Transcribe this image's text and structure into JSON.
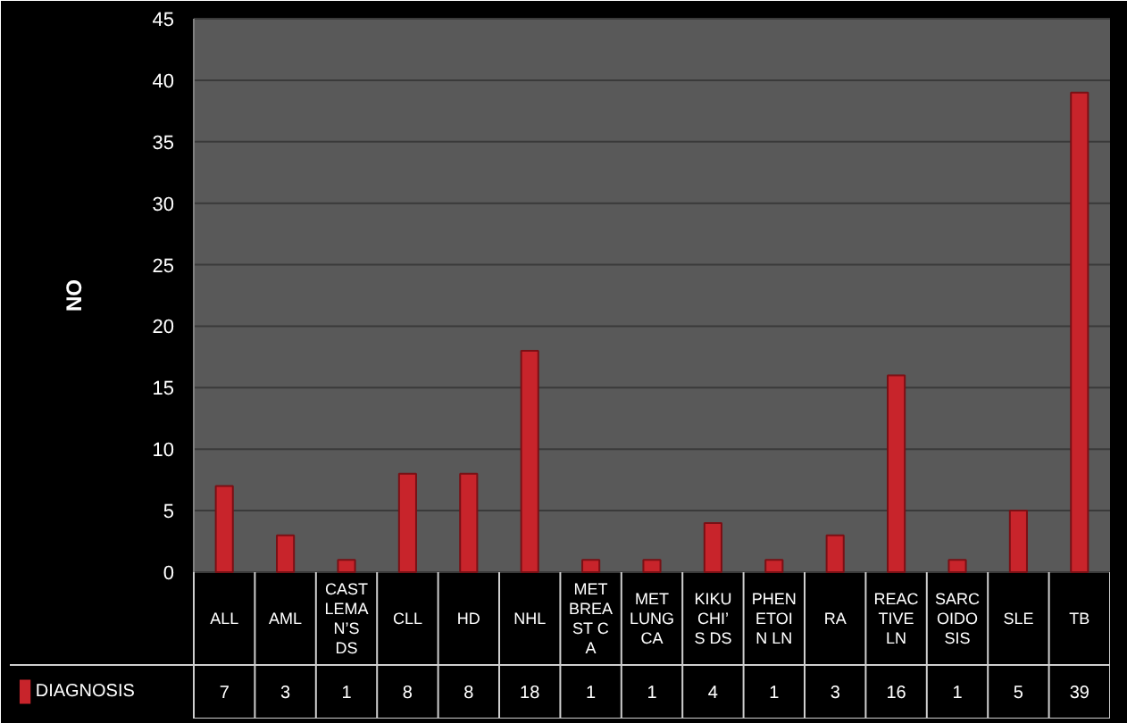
{
  "chart_data": {
    "type": "bar",
    "ylabel": "NO",
    "categories": [
      "ALL",
      "AML",
      "CASTLEMAN’S DS",
      "CLL",
      "HD",
      "NHL",
      "MET BREAST CA",
      "MET LUNG CA",
      "KIKUCHI’S DS",
      "PHENETOIN LN",
      "RA",
      "REACTIVE LN",
      "SARCOIDOSIS",
      "SLE",
      "TB"
    ],
    "series": [
      {
        "name": "DIAGNOSIS",
        "color": "#c8242b",
        "values": [
          7,
          3,
          1,
          8,
          8,
          18,
          1,
          1,
          4,
          1,
          3,
          16,
          1,
          5,
          39
        ]
      }
    ],
    "ylim": [
      0,
      45
    ],
    "yticks": [
      0,
      5,
      10,
      15,
      20,
      25,
      30,
      35,
      40,
      45
    ],
    "grid": "y",
    "legend": "bottom",
    "data_labels": true
  }
}
